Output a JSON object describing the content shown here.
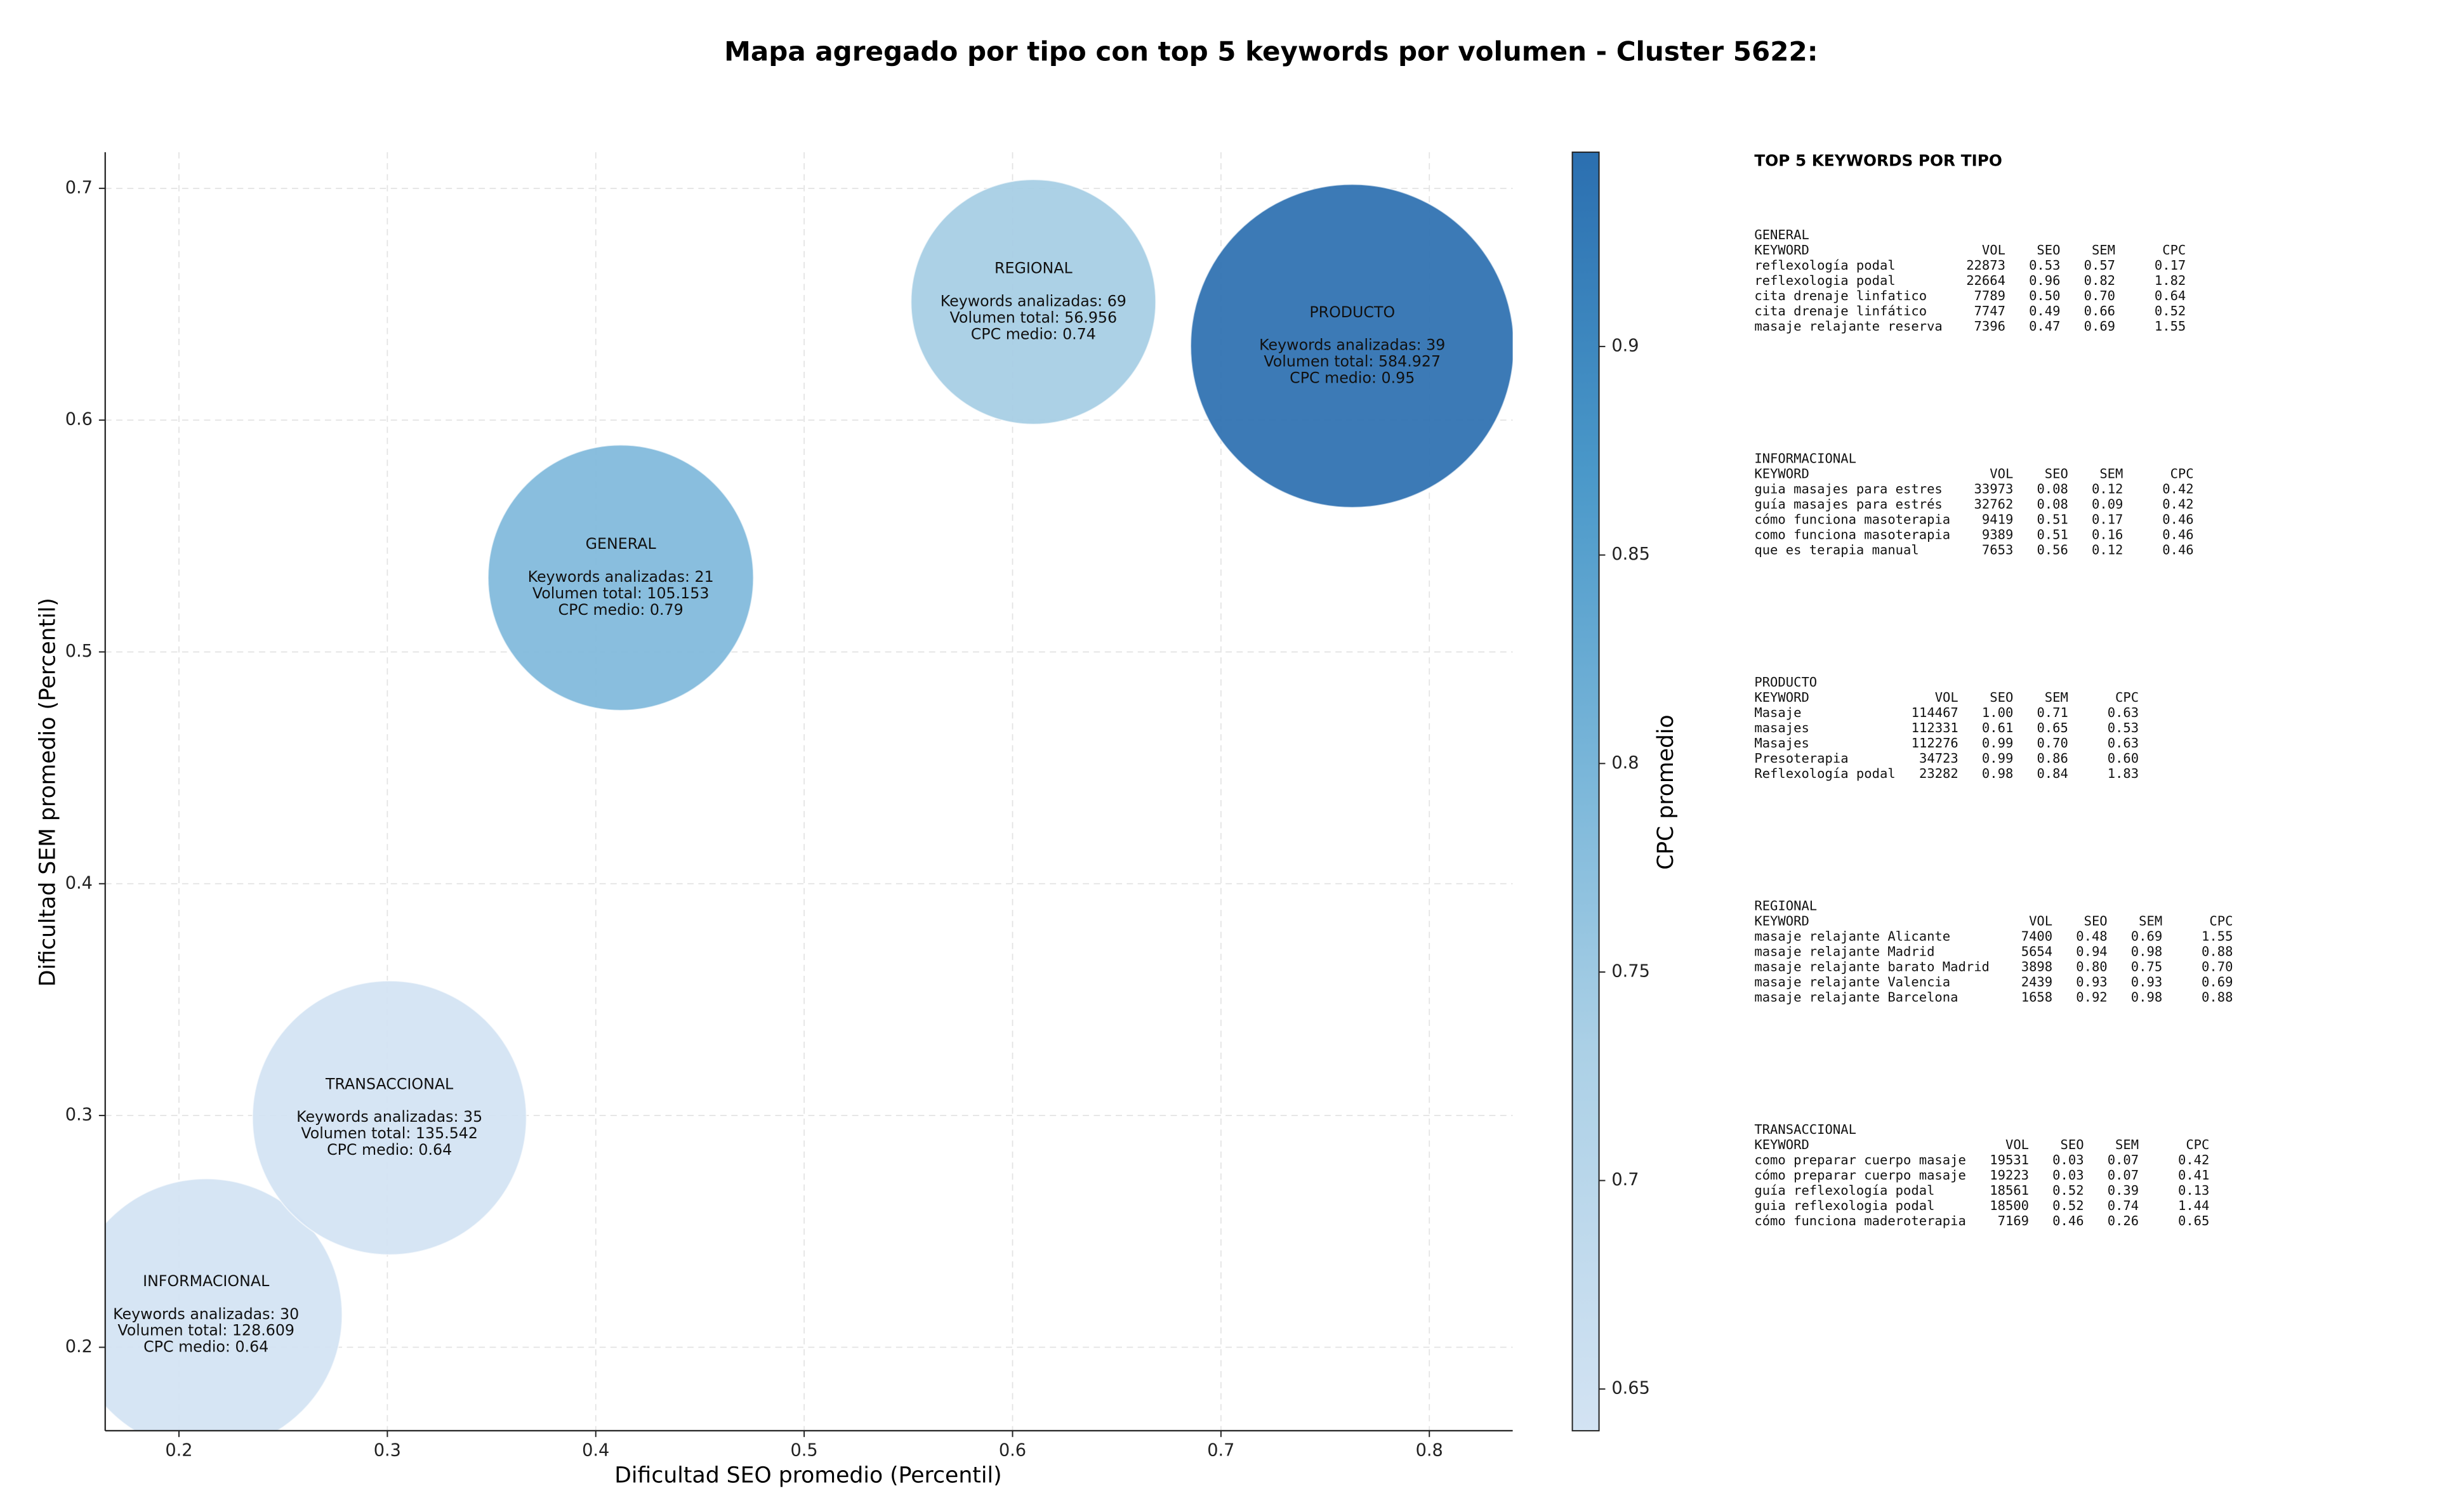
{
  "chart_data": {
    "type": "scatter",
    "title": "Mapa agregado por tipo con top 5 keywords por volumen - Cluster 5622:",
    "x_label": "Dificultad SEO promedio (Percentil)",
    "y_label": "Dificultad SEM promedio (Percentil)",
    "labels": [
      "GENERAL",
      "INFORMACIONAL",
      "PRODUCTO",
      "REGIONAL",
      "TRANSACCIONAL"
    ],
    "x": [
      0.412,
      0.213,
      0.763,
      0.61,
      0.301
    ],
    "values": [
      0.532,
      0.214,
      0.632,
      0.651,
      0.299
    ],
    "keywords": [
      21,
      30,
      39,
      69,
      35
    ],
    "volume": [
      105153,
      128609,
      584927,
      56956,
      135542
    ],
    "cpc": [
      0.79,
      0.64,
      0.95,
      0.74,
      0.64
    ],
    "annotations": [
      [
        "Keywords analizadas: 21",
        "Volumen total: 105.153",
        "CPC medio: 0.79"
      ],
      [
        "Keywords analizadas: 30",
        "Volumen total: 128.609",
        "CPC medio: 0.64"
      ],
      [
        "Keywords analizadas: 39",
        "Volumen total: 584.927",
        "CPC medio: 0.95"
      ],
      [
        "Keywords analizadas: 69",
        "Volumen total: 56.956",
        "CPC medio: 0.74"
      ],
      [
        "Keywords analizadas: 35",
        "Volumen total: 135.542",
        "CPC medio: 0.64"
      ]
    ],
    "xlim": [
      0.1646,
      0.84
    ],
    "ylim": [
      0.164,
      0.7156
    ],
    "xticks": [
      0.2,
      0.3,
      0.4,
      0.5,
      0.6,
      0.7,
      0.8
    ],
    "yticks": [
      0.2,
      0.3,
      0.4,
      0.5,
      0.6,
      0.7
    ],
    "grid": true,
    "colorbar": {
      "label": "CPC promedio",
      "lim": [
        0.64,
        0.9466
      ],
      "ticks": [
        0.65,
        0.7,
        0.75,
        0.8,
        0.85,
        0.9
      ]
    }
  },
  "keyword_tables": {
    "title": "TOP 5 KEYWORDS POR TIPO",
    "columns": [
      "KEYWORD",
      "VOL",
      "SEO",
      "SEM",
      "CPC"
    ],
    "sections": [
      {
        "name": "GENERAL",
        "rows": [
          [
            "reflexología podal",
            "22873",
            "0.53",
            "0.57",
            "0.17"
          ],
          [
            "reflexologia podal",
            "22664",
            "0.96",
            "0.82",
            "1.82"
          ],
          [
            "cita drenaje linfatico",
            "7789",
            "0.50",
            "0.70",
            "0.64"
          ],
          [
            "cita drenaje linfático",
            "7747",
            "0.49",
            "0.66",
            "0.52"
          ],
          [
            "masaje relajante reserva",
            "7396",
            "0.47",
            "0.69",
            "1.55"
          ]
        ]
      },
      {
        "name": "INFORMACIONAL",
        "rows": [
          [
            "guia masajes para estres",
            "33973",
            "0.08",
            "0.12",
            "0.42"
          ],
          [
            "guía masajes para estrés",
            "32762",
            "0.08",
            "0.09",
            "0.42"
          ],
          [
            "cómo funciona masoterapia",
            "9419",
            "0.51",
            "0.17",
            "0.46"
          ],
          [
            "como funciona masoterapia",
            "9389",
            "0.51",
            "0.16",
            "0.46"
          ],
          [
            "que es terapia manual",
            "7653",
            "0.56",
            "0.12",
            "0.46"
          ]
        ]
      },
      {
        "name": "PRODUCTO",
        "rows": [
          [
            "Masaje",
            "114467",
            "1.00",
            "0.71",
            "0.63"
          ],
          [
            "masajes",
            "112331",
            "0.61",
            "0.65",
            "0.53"
          ],
          [
            "Masajes",
            "112276",
            "0.99",
            "0.70",
            "0.63"
          ],
          [
            "Presoterapia",
            "34723",
            "0.99",
            "0.86",
            "0.60"
          ],
          [
            "Reflexología podal",
            "23282",
            "0.98",
            "0.84",
            "1.83"
          ]
        ]
      },
      {
        "name": "REGIONAL",
        "rows": [
          [
            "masaje relajante Alicante",
            "7400",
            "0.48",
            "0.69",
            "1.55"
          ],
          [
            "masaje relajante Madrid",
            "5654",
            "0.94",
            "0.98",
            "0.88"
          ],
          [
            "masaje relajante barato Madrid",
            "3898",
            "0.80",
            "0.75",
            "0.70"
          ],
          [
            "masaje relajante Valencia",
            "2439",
            "0.93",
            "0.93",
            "0.69"
          ],
          [
            "masaje relajante Barcelona",
            "1658",
            "0.92",
            "0.98",
            "0.88"
          ]
        ]
      },
      {
        "name": "TRANSACCIONAL",
        "rows": [
          [
            "como preparar cuerpo masaje",
            "19531",
            "0.03",
            "0.07",
            "0.42"
          ],
          [
            "cómo preparar cuerpo masaje",
            "19223",
            "0.03",
            "0.07",
            "0.41"
          ],
          [
            "guía reflexología podal",
            "18561",
            "0.52",
            "0.39",
            "0.13"
          ],
          [
            "guia reflexologia podal",
            "18500",
            "0.52",
            "0.74",
            "1.44"
          ],
          [
            "cómo funciona maderoterapia",
            "7169",
            "0.46",
            "0.26",
            "0.65"
          ]
        ]
      }
    ]
  }
}
